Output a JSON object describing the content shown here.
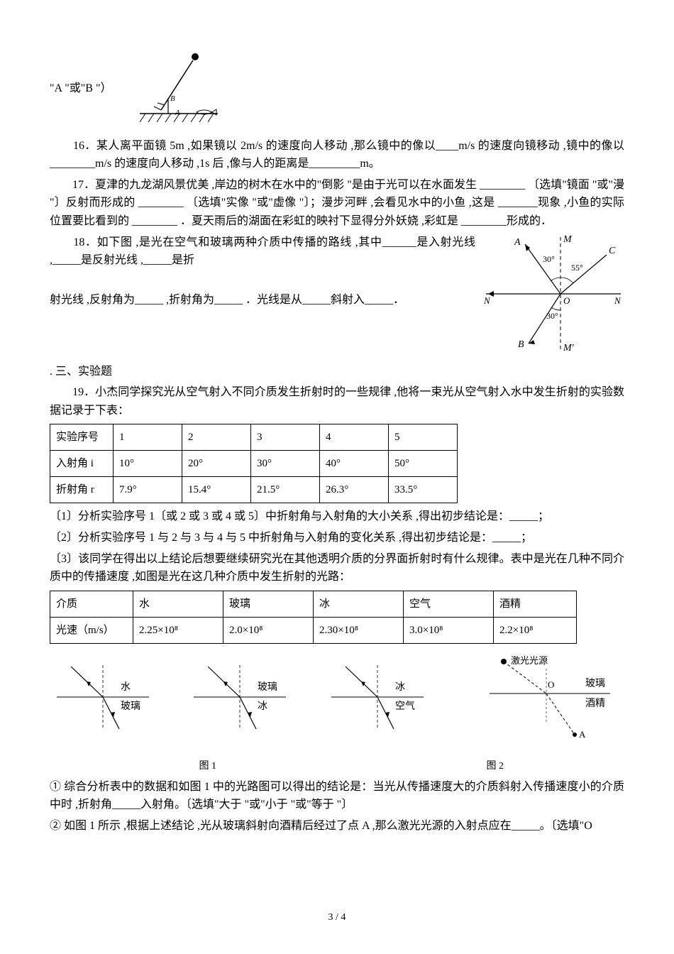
{
  "lineA": "\"A \"或\"B \"）",
  "q16": "　　16．某人离平面镜 5m ,如果镜以 2m/s 的速度向人移动 ,那么镜中的像以____m/s 的速度向镜移动 ,镜中的像以________m/s 的速度向人移动 ,1s 后 ,像与人的距离是_________m。",
  "q17": "　　17．夏津的九龙湖风景优美 ,岸边的树木在水中的\"倒影 \"是由于光可以在水面发生 ________ 〔选填\"镜面 \"或\"漫 \"〕反射而形成的 ________ 〔选填\"实像 \"或\"虚像 \"〕；漫步河畔 ,会看见水中的小鱼 ,这是 _______现象 ,小鱼的实际位置要比看到的 ________ ．夏天雨后的湖面在彩虹的映衬下显得分外妖娆 ,彩虹是 ________形成的．",
  "q18_a": "　　18．如下图 ,是光在空气和玻璃两种介质中传播的路线 ,其中______是入射光线 ,_____是反射光线 ,_____是折",
  "q18_b": "射光线 ,反射角为_____ ,折射角为_____ ．光线是从_____斜射入_____．",
  "section3": ". 三、实验题",
  "q19_a": "　　19．小杰同学探究光从空气射入不同介质发生折射时的一些规律 ,他将一束光从空气射入水中发生折射的实验数据记录于下表：",
  "t1": {
    "rows": [
      [
        "实验序号",
        "1",
        "2",
        "3",
        "4",
        "5"
      ],
      [
        "入射角 i",
        "10°",
        "20°",
        "30°",
        "40°",
        "50°"
      ],
      [
        "折射角 r",
        "7.9°",
        "15.4°",
        "21.5°",
        "26.3°",
        "33.5°"
      ]
    ],
    "widths": [
      72,
      80,
      80,
      80,
      80,
      80
    ]
  },
  "q19_1": "〔1〕分析实验序号 1〔或 2 或 3 或 4 或 5〕中折射角与入射角的大小关系 ,得出初步结论是：_____；",
  "q19_2": "〔2〕分析实验序号 1 与 2 与 3 与 4 与 5 中折射角与入射角的变化关系 ,得出初步结论是：_____；",
  "q19_3": "〔3〕该同学在得出以上结论后想要继续研究光在其他透明介质的分界面折射时有什么规律。表中是光在几种不同介质中的传播速度 ,如图是光在这几种介质中发生折射的光路：",
  "t2": {
    "rows": [
      [
        "介质",
        "水",
        "玻璃",
        "冰",
        "空气",
        "酒精"
      ],
      [
        "光速（m/s）",
        "2.25×10⁸",
        "2.0×10⁸",
        "2.30×10⁸",
        "3.0×10⁸",
        "2.2×10⁸"
      ]
    ],
    "widths": [
      100,
      110,
      110,
      110,
      110,
      100
    ]
  },
  "fig1": {
    "pairs": [
      [
        "水",
        "玻璃"
      ],
      [
        "玻璃",
        "冰"
      ],
      [
        "冰",
        "空气"
      ]
    ],
    "caption": "图 1"
  },
  "fig2": {
    "labels": [
      "激光光源",
      "O",
      "玻璃",
      "酒精",
      "A"
    ],
    "caption": "图 2"
  },
  "q19_c1": "① 综合分析表中的数据和如图 1 中的光路图可以得出的结论是：当光从传播速度大的介质斜射入传播速度小的介质中时 ,折射角_____入射角。〔选填\"大于 \"或\"小于 \"或\"等于 \"〕",
  "q19_c2": "② 如图 1 所示 ,根据上述结论 ,光从玻璃斜射向酒精后经过了点 A ,那么激光光源的入射点应在_____。〔选填\"O",
  "pagenum": "3 / 4"
}
